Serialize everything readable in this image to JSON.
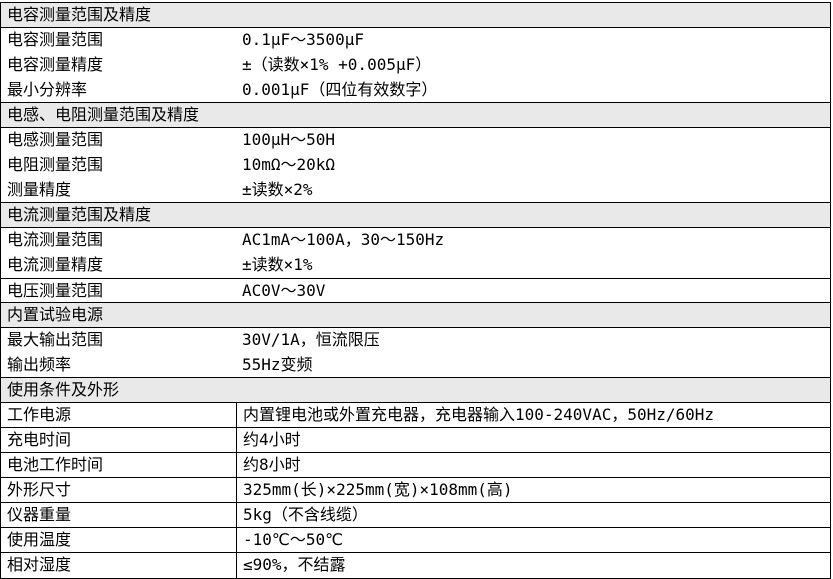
{
  "table": {
    "border_color": "#000000",
    "header_bg": "#e9e9e9",
    "text_color": "#000000",
    "groups": [
      {
        "header": "电容测量范围及精度",
        "row_dividers": false,
        "column_divider": false,
        "rows": [
          {
            "label": "电容测量范围",
            "value": "0.1μF～3500μF"
          },
          {
            "label": "电容测量精度",
            "value": "±（读数×1% +0.005μF）"
          },
          {
            "label": "最小分辨率",
            "value": "0.001μF（四位有效数字）"
          }
        ]
      },
      {
        "header": "电感、电阻测量范围及精度",
        "row_dividers": false,
        "column_divider": false,
        "rows": [
          {
            "label": "电感测量范围",
            "value": "100μH～50H"
          },
          {
            "label": "电阻测量范围",
            "value": "10mΩ～20kΩ"
          },
          {
            "label": "测量精度",
            "value": "±读数×2%"
          }
        ]
      },
      {
        "header": "电流测量范围及精度",
        "row_dividers": false,
        "column_divider": false,
        "rows": [
          {
            "label": "电流测量范围",
            "value": "AC1mA～100A，30～150Hz"
          },
          {
            "label": "电流测量精度",
            "value": "±读数×1%"
          },
          {
            "label": "电压测量范围",
            "value": "AC0V～30V",
            "line_above": true
          }
        ]
      },
      {
        "header": "内置试验电源",
        "row_dividers": false,
        "column_divider": false,
        "rows": [
          {
            "label": "最大输出范围",
            "value": "30V/1A，恒流限压"
          },
          {
            "label": "输出频率",
            "value": "55Hz变频"
          }
        ]
      },
      {
        "header": "使用条件及外形",
        "row_dividers": true,
        "column_divider": true,
        "rows": [
          {
            "label": "工作电源",
            "value": "内置锂电池或外置充电器，充电器输入100-240VAC，50Hz/60Hz"
          },
          {
            "label": "充电时间",
            "value": "约4小时"
          },
          {
            "label": "电池工作时间",
            "value": "约8小时"
          },
          {
            "label": "外形尺寸",
            "value": "325mm(长)×225mm(宽)×108mm(高)"
          },
          {
            "label": "仪器重量",
            "value": "5kg（不含线缆）"
          },
          {
            "label": "使用温度",
            "value": "-10℃～50℃"
          },
          {
            "label": "相对湿度",
            "value": "≤90%，不结露"
          }
        ]
      }
    ]
  }
}
